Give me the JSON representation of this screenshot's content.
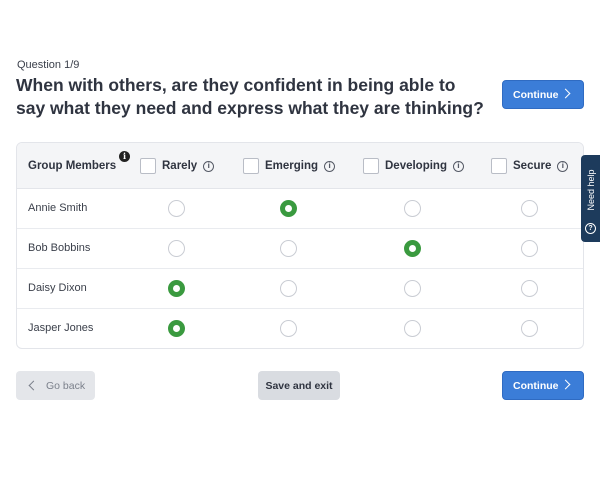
{
  "question": {
    "counter": "Question 1/9",
    "text": "When with others, are they confident in being able to say what they need and express what they are thinking?"
  },
  "buttons": {
    "continue_label": "Continue",
    "back_label": "Go back",
    "save_exit_label": "Save and exit"
  },
  "table": {
    "members_header": "Group Members",
    "columns": [
      {
        "label": "Rarely"
      },
      {
        "label": "Emerging"
      },
      {
        "label": "Developing"
      },
      {
        "label": "Secure"
      }
    ],
    "rows": [
      {
        "name": "Annie Smith",
        "selected": "Emerging"
      },
      {
        "name": "Bob Bobbins",
        "selected": "Developing"
      },
      {
        "name": "Daisy Dixon",
        "selected": "Rarely"
      },
      {
        "name": "Jasper Jones",
        "selected": "Rarely"
      }
    ]
  },
  "help_tab": {
    "label": "Need help"
  },
  "icons": {
    "info": "info-icon",
    "chevron_right": "chevron-right-icon",
    "chevron_left": "chevron-left-icon",
    "help": "question-circle-icon"
  },
  "colors": {
    "primary": "#3b7dd8",
    "selected_radio": "#3a9a3f",
    "help_tab": "#1d3b5c"
  }
}
